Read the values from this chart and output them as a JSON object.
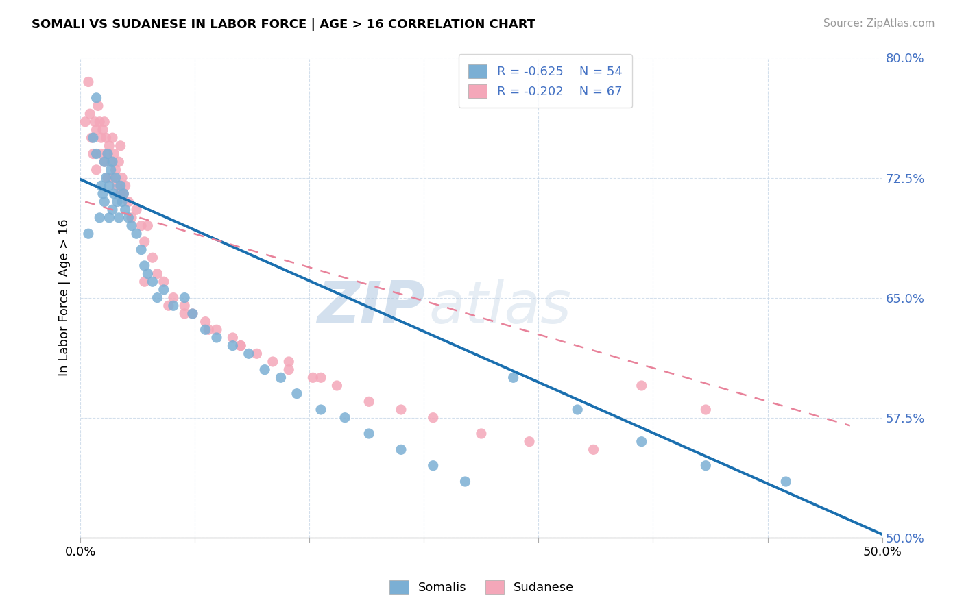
{
  "title": "SOMALI VS SUDANESE IN LABOR FORCE | AGE > 16 CORRELATION CHART",
  "source": "Source: ZipAtlas.com",
  "ylabel": "In Labor Force | Age > 16",
  "xlim": [
    0.0,
    0.5
  ],
  "ylim": [
    0.5,
    0.8
  ],
  "yticks": [
    0.5,
    0.575,
    0.65,
    0.725,
    0.8
  ],
  "ytick_labels": [
    "50.0%",
    "57.5%",
    "65.0%",
    "72.5%",
    "80.0%"
  ],
  "xticks": [
    0.0,
    0.0714,
    0.1429,
    0.2143,
    0.2857,
    0.3571,
    0.4286,
    0.5
  ],
  "xtick_labels": [
    "0.0%",
    "",
    "",
    "",
    "",
    "",
    "",
    "50.0%"
  ],
  "somali_color": "#7bafd4",
  "sudanese_color": "#f4a7b9",
  "somali_line_color": "#1a6faf",
  "sudanese_line_color": "#e8829a",
  "R_somali": -0.625,
  "N_somali": 54,
  "R_sudanese": -0.202,
  "N_sudanese": 67,
  "legend_label_somali": "Somalis",
  "legend_label_sudanese": "Sudanese",
  "watermark_zip": "ZIP",
  "watermark_atlas": "atlas",
  "somali_x": [
    0.005,
    0.008,
    0.01,
    0.01,
    0.012,
    0.013,
    0.014,
    0.015,
    0.015,
    0.016,
    0.017,
    0.018,
    0.018,
    0.019,
    0.02,
    0.02,
    0.021,
    0.022,
    0.023,
    0.024,
    0.025,
    0.026,
    0.027,
    0.028,
    0.03,
    0.032,
    0.035,
    0.038,
    0.04,
    0.042,
    0.045,
    0.048,
    0.052,
    0.058,
    0.065,
    0.07,
    0.078,
    0.085,
    0.095,
    0.105,
    0.115,
    0.125,
    0.135,
    0.15,
    0.165,
    0.18,
    0.2,
    0.22,
    0.24,
    0.27,
    0.31,
    0.35,
    0.39,
    0.44
  ],
  "somali_y": [
    0.69,
    0.75,
    0.775,
    0.74,
    0.7,
    0.72,
    0.715,
    0.735,
    0.71,
    0.725,
    0.74,
    0.72,
    0.7,
    0.73,
    0.735,
    0.705,
    0.715,
    0.725,
    0.71,
    0.7,
    0.72,
    0.71,
    0.715,
    0.705,
    0.7,
    0.695,
    0.69,
    0.68,
    0.67,
    0.665,
    0.66,
    0.65,
    0.655,
    0.645,
    0.65,
    0.64,
    0.63,
    0.625,
    0.62,
    0.615,
    0.605,
    0.6,
    0.59,
    0.58,
    0.575,
    0.565,
    0.555,
    0.545,
    0.535,
    0.6,
    0.58,
    0.56,
    0.545,
    0.535
  ],
  "sudanese_x": [
    0.003,
    0.005,
    0.006,
    0.007,
    0.008,
    0.009,
    0.01,
    0.01,
    0.011,
    0.012,
    0.013,
    0.013,
    0.014,
    0.015,
    0.015,
    0.016,
    0.017,
    0.017,
    0.018,
    0.019,
    0.02,
    0.02,
    0.021,
    0.022,
    0.023,
    0.024,
    0.025,
    0.025,
    0.026,
    0.027,
    0.028,
    0.03,
    0.032,
    0.035,
    0.038,
    0.04,
    0.042,
    0.045,
    0.048,
    0.052,
    0.058,
    0.065,
    0.07,
    0.078,
    0.085,
    0.095,
    0.1,
    0.11,
    0.12,
    0.13,
    0.145,
    0.16,
    0.18,
    0.2,
    0.22,
    0.25,
    0.28,
    0.32,
    0.35,
    0.39,
    0.04,
    0.055,
    0.065,
    0.08,
    0.1,
    0.13,
    0.15
  ],
  "sudanese_y": [
    0.76,
    0.785,
    0.765,
    0.75,
    0.74,
    0.76,
    0.755,
    0.73,
    0.77,
    0.76,
    0.75,
    0.74,
    0.755,
    0.76,
    0.735,
    0.75,
    0.74,
    0.725,
    0.745,
    0.735,
    0.75,
    0.725,
    0.74,
    0.73,
    0.72,
    0.735,
    0.745,
    0.715,
    0.725,
    0.715,
    0.72,
    0.71,
    0.7,
    0.705,
    0.695,
    0.685,
    0.695,
    0.675,
    0.665,
    0.66,
    0.65,
    0.645,
    0.64,
    0.635,
    0.63,
    0.625,
    0.62,
    0.615,
    0.61,
    0.605,
    0.6,
    0.595,
    0.585,
    0.58,
    0.575,
    0.565,
    0.56,
    0.555,
    0.595,
    0.58,
    0.66,
    0.645,
    0.64,
    0.63,
    0.62,
    0.61,
    0.6
  ],
  "somali_line_x": [
    0.0,
    0.5
  ],
  "somali_line_y": [
    0.724,
    0.502
  ],
  "sudanese_line_x": [
    0.003,
    0.48
  ],
  "sudanese_line_y": [
    0.71,
    0.57
  ]
}
